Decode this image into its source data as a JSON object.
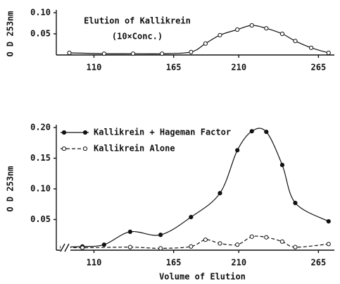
{
  "chart_data": [
    {
      "type": "line",
      "title": "Elution of Kallikrein",
      "subtitle": "(10×Conc.)",
      "y_label": "O D 253nm",
      "x": [
        93,
        117,
        137,
        157,
        177,
        187,
        197,
        209,
        219,
        229,
        240,
        249,
        260,
        272
      ],
      "series": [
        {
          "color": "#111111",
          "marker": "open",
          "linestyle": "solid",
          "values": [
            0.005,
            0.003,
            0.003,
            0.003,
            0.007,
            0.027,
            0.047,
            0.06,
            0.07,
            0.063,
            0.05,
            0.033,
            0.017,
            0.005
          ]
        }
      ],
      "xlim": [
        84,
        276
      ],
      "xticks": [
        110,
        165,
        210,
        265
      ],
      "ylim": [
        0,
        0.1
      ],
      "yticks": [
        {
          "value": 0.1,
          "label": "0.10"
        },
        0.05
      ]
    },
    {
      "type": "line",
      "x_label": "Volume of Elution",
      "y_label": "O D 253nm",
      "legend": "upper left",
      "series": [
        {
          "name": "Kallikrein + Hageman Factor",
          "color": "#111111",
          "marker": "filled",
          "linestyle": "solid",
          "x": [
            88,
            102,
            117,
            135,
            156,
            177,
            197,
            209,
            219,
            229,
            240,
            249,
            272
          ],
          "values": [
            0.005,
            0.006,
            0.009,
            0.03,
            0.025,
            0.054,
            0.093,
            0.163,
            0.194,
            0.193,
            0.139,
            0.077,
            0.047
          ]
        },
        {
          "name": "Kallikrein Alone",
          "color": "#111111",
          "marker": "open",
          "linestyle": "dashed",
          "x": [
            88,
            102,
            135,
            156,
            177,
            187,
            197,
            209,
            219,
            229,
            240,
            249,
            272
          ],
          "values": [
            0.005,
            0.004,
            0.005,
            0.003,
            0.006,
            0.017,
            0.011,
            0.009,
            0.022,
            0.021,
            0.014,
            0.005,
            0.01
          ]
        }
      ],
      "xlim": [
        84,
        276
      ],
      "xticks": [
        110,
        165,
        210,
        265
      ],
      "ylim": [
        0,
        0.2
      ],
      "yticks": [
        {
          "value": 0.2,
          "label": "0.20"
        },
        0.15,
        {
          "value": 0.1,
          "label": "0.10"
        },
        0.05
      ]
    }
  ]
}
